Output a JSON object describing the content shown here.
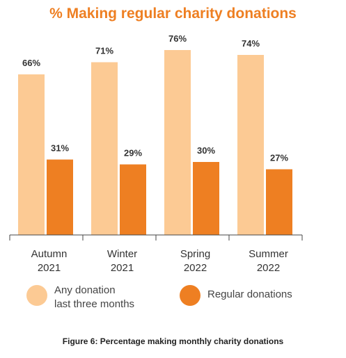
{
  "chart_data": {
    "type": "bar",
    "title": "% Making regular charity donations",
    "categories": [
      [
        "Autumn",
        "2021"
      ],
      [
        "Winter",
        "2021"
      ],
      [
        "Spring",
        "2022"
      ],
      [
        "Summer",
        "2022"
      ]
    ],
    "series": [
      {
        "name": "Any donation last three months",
        "legend_lines": [
          "Any donation",
          "last three months"
        ],
        "values": [
          66,
          71,
          76,
          74
        ],
        "labels": [
          "66%",
          "71%",
          "76%",
          "74%"
        ],
        "color": "#fcca94"
      },
      {
        "name": "Regular donations",
        "legend_lines": [
          "Regular donations"
        ],
        "values": [
          31,
          29,
          30,
          27
        ],
        "labels": [
          "31%",
          "29%",
          "30%",
          "27%"
        ],
        "color": "#ee7f22"
      }
    ],
    "ylim": [
      0,
      80
    ],
    "grid": false,
    "legend_position": "bottom"
  },
  "caption": "Figure 6: Percentage making monthly charity donations"
}
